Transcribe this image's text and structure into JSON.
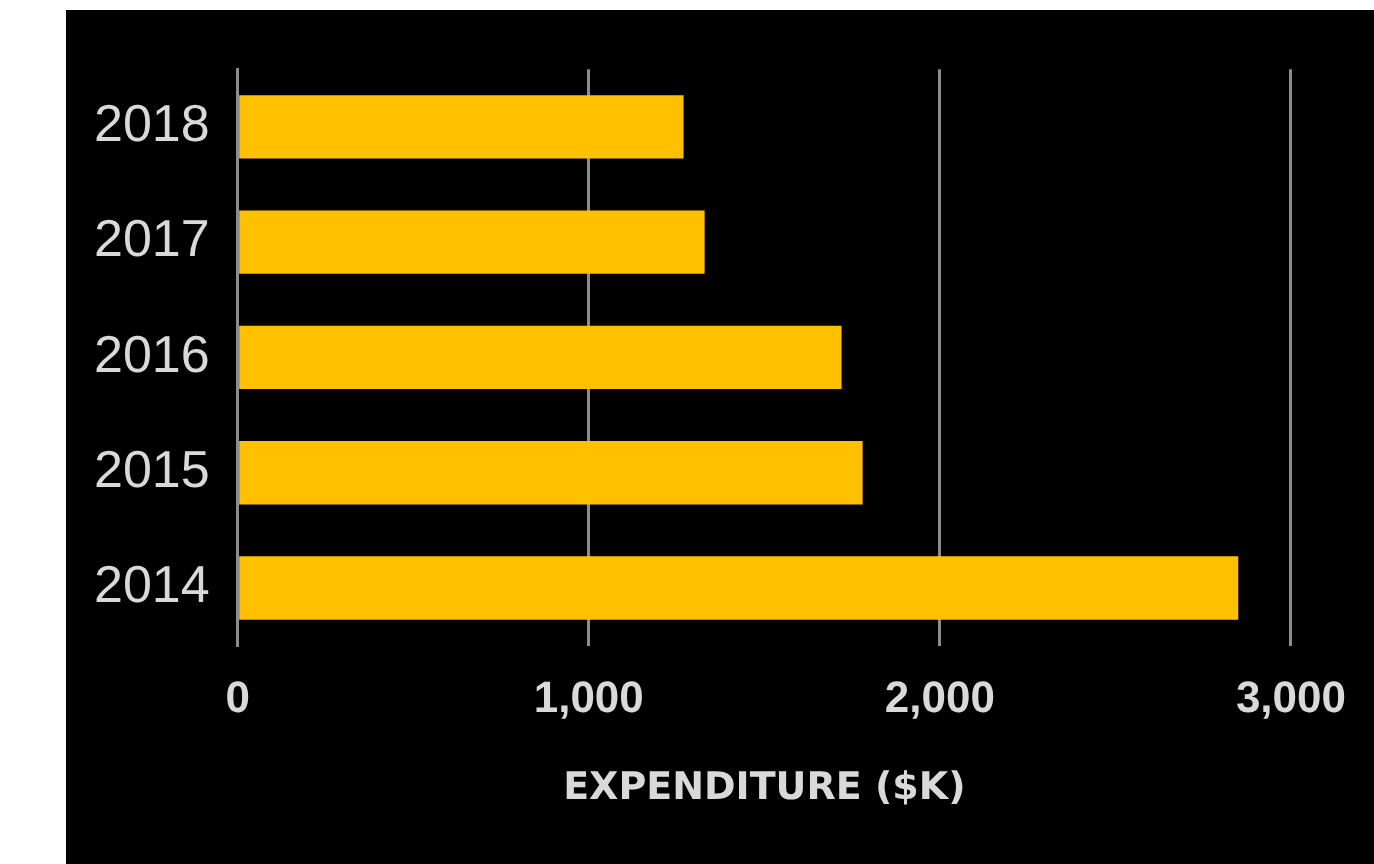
{
  "chart_data": {
    "type": "bar",
    "orientation": "horizontal",
    "xlabel": "EXPENDITURE ($K)",
    "categories": [
      "2018",
      "2017",
      "2016",
      "2015",
      "2014"
    ],
    "values": [
      1270,
      1330,
      1720,
      1780,
      2850
    ],
    "color": "#ffc000",
    "xlim": [
      0,
      3000
    ],
    "xticks": [
      0,
      {
        "value": 1000,
        "label": "1,000"
      },
      {
        "value": 2000,
        "label": "2,000"
      },
      {
        "value": 3000,
        "label": "3,000"
      }
    ],
    "grid": "x"
  }
}
